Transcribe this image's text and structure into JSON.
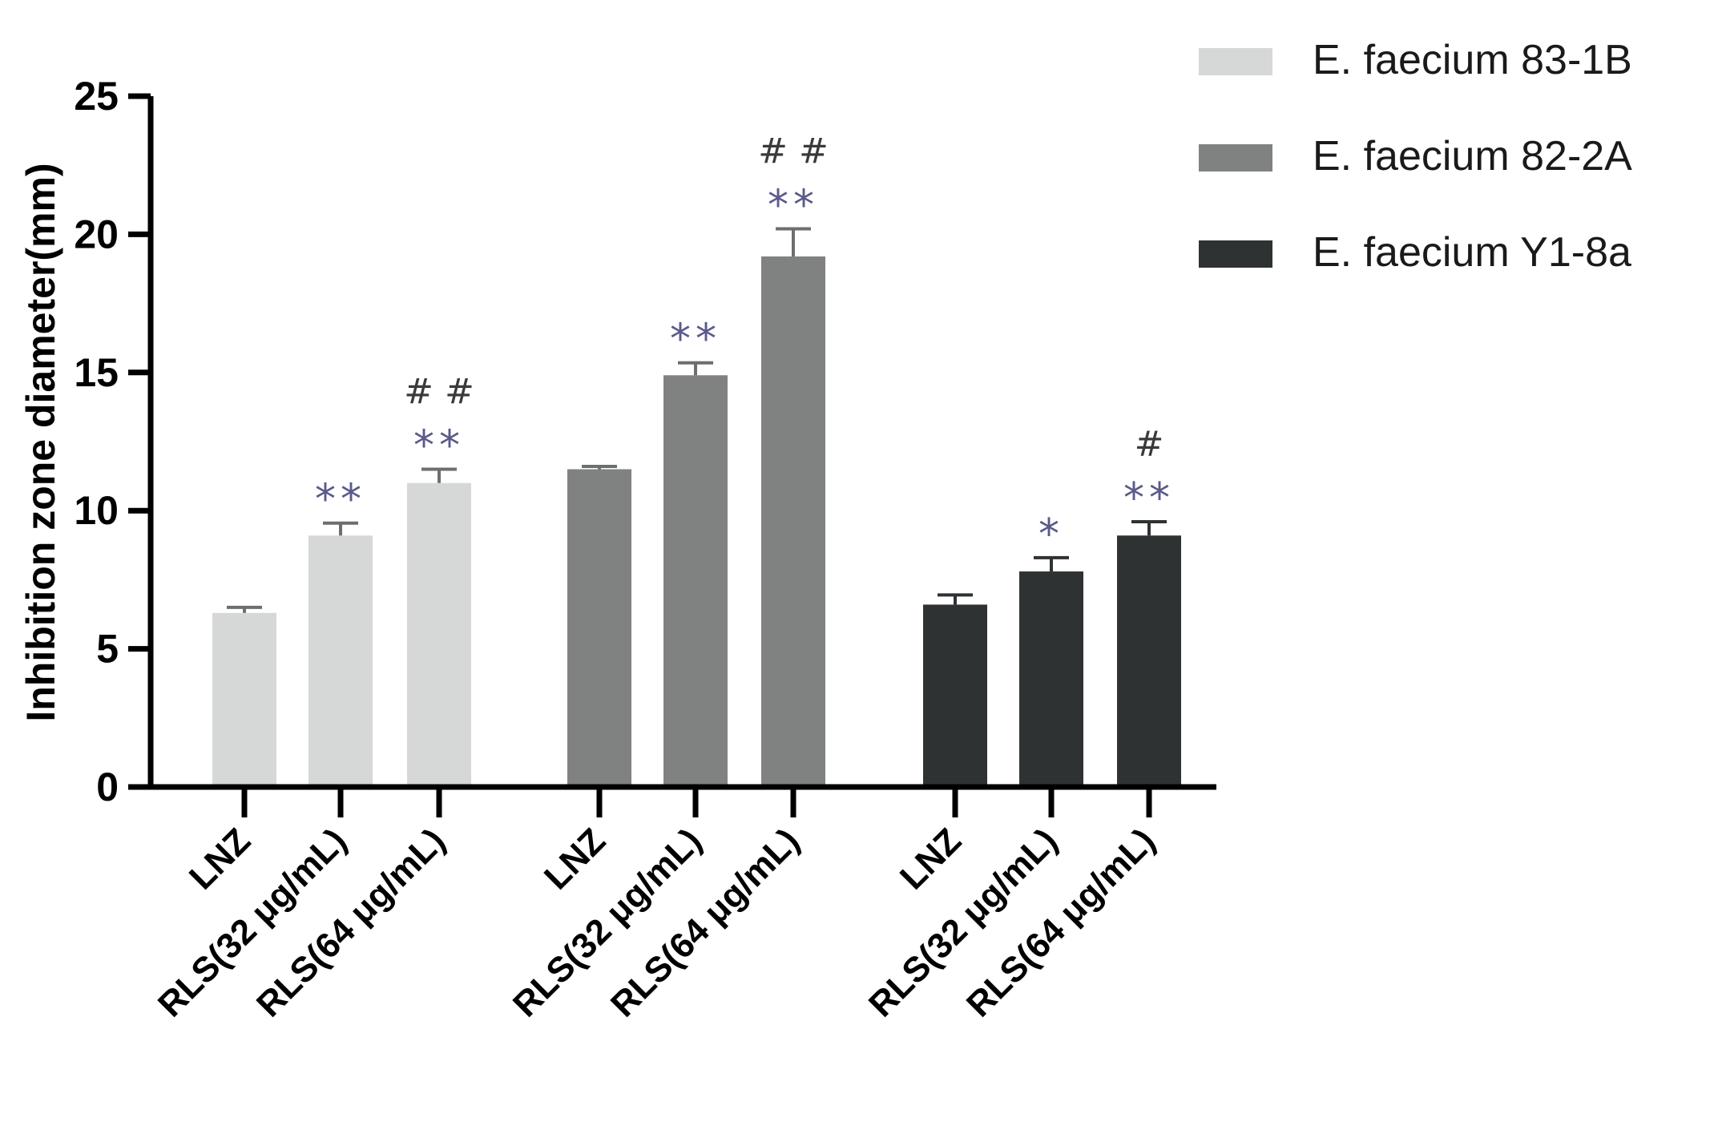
{
  "chart_data": {
    "type": "bar",
    "title": "",
    "xlabel": "",
    "ylabel": "Inhibition zone diameter(mm)",
    "ylim": [
      0,
      25
    ],
    "yticks": [
      0,
      5,
      10,
      15,
      20,
      25
    ],
    "categories": [
      "LNZ",
      "RLS(32 μg/mL)",
      "RLS(64 μg/mL)"
    ],
    "legend_position": "top-right",
    "series": [
      {
        "name": "E. faecium 83-1B",
        "color": "#d6d8d7",
        "values": [
          6.3,
          9.1,
          11.0
        ],
        "errors": [
          0.2,
          0.45,
          0.5
        ],
        "significance": [
          "",
          "**",
          "**"
        ],
        "hash": [
          "",
          "",
          "# #"
        ]
      },
      {
        "name": "E. faecium 82-2A",
        "color": "#808281",
        "values": [
          11.5,
          14.9,
          19.2
        ],
        "errors": [
          0.1,
          0.45,
          1.0
        ],
        "significance": [
          "",
          "**",
          "**"
        ],
        "hash": [
          "",
          "",
          "# #"
        ]
      },
      {
        "name": "E. faecium Y1-8a",
        "color": "#2f3233",
        "values": [
          6.6,
          7.8,
          9.1
        ],
        "errors": [
          0.35,
          0.5,
          0.5
        ],
        "significance": [
          "",
          "*",
          "**"
        ],
        "hash": [
          "",
          "",
          "#"
        ]
      }
    ]
  }
}
